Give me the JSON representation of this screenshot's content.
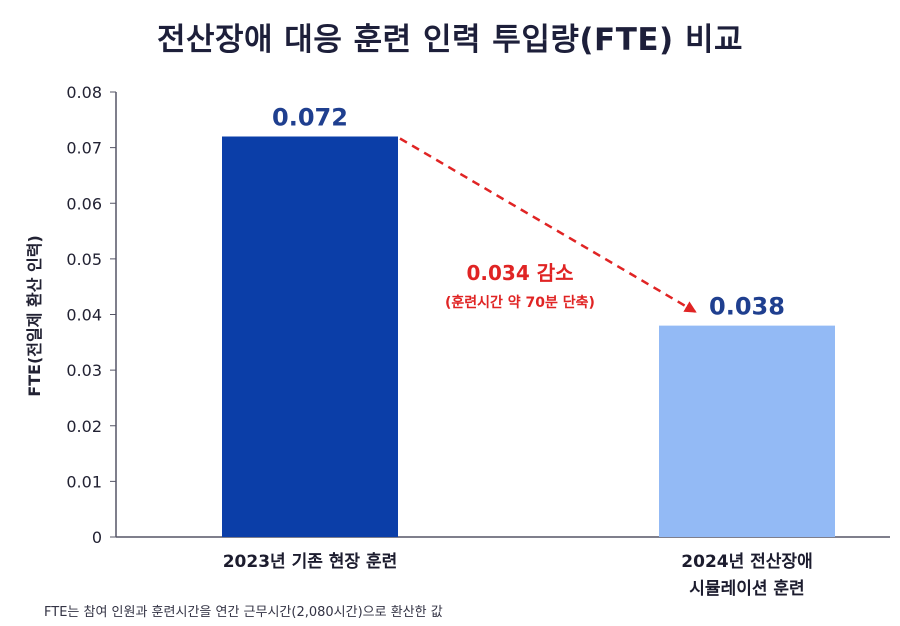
{
  "colors": {
    "bar_2023": "#0b3ea8",
    "bar_2024": "#93baf5",
    "annotation": "#e02424",
    "data_label": "#1f3f8f"
  },
  "chart_data": {
    "type": "bar",
    "title": "전산장애 대응 훈련 인력 투입량(FTE) 비교",
    "ylabel": "FTE(전일제 환산 인력)",
    "xlabel": "",
    "ylim": [
      0,
      0.08
    ],
    "yticks": [
      "0",
      "0.01",
      "0.02",
      "0.03",
      "0.04",
      "0.05",
      "0.06",
      "0.07",
      "0.08"
    ],
    "categories": [
      [
        "2023년 기존 현장 훈련"
      ],
      [
        "2024년 전산장애",
        "시뮬레이션 훈련"
      ]
    ],
    "values": [
      0.072,
      0.038
    ],
    "data_labels": [
      "0.072",
      "0.038"
    ],
    "grid": false,
    "annotation": {
      "text": "0.034 감소",
      "subtext": "(훈련시간 약 70분 단축)",
      "style": "dashed red arrow from first bar to second bar"
    },
    "footnote": "FTE는 참여 인원과 훈련시간을 연간 근무시간(2,080시간)으로 환산한 값"
  }
}
